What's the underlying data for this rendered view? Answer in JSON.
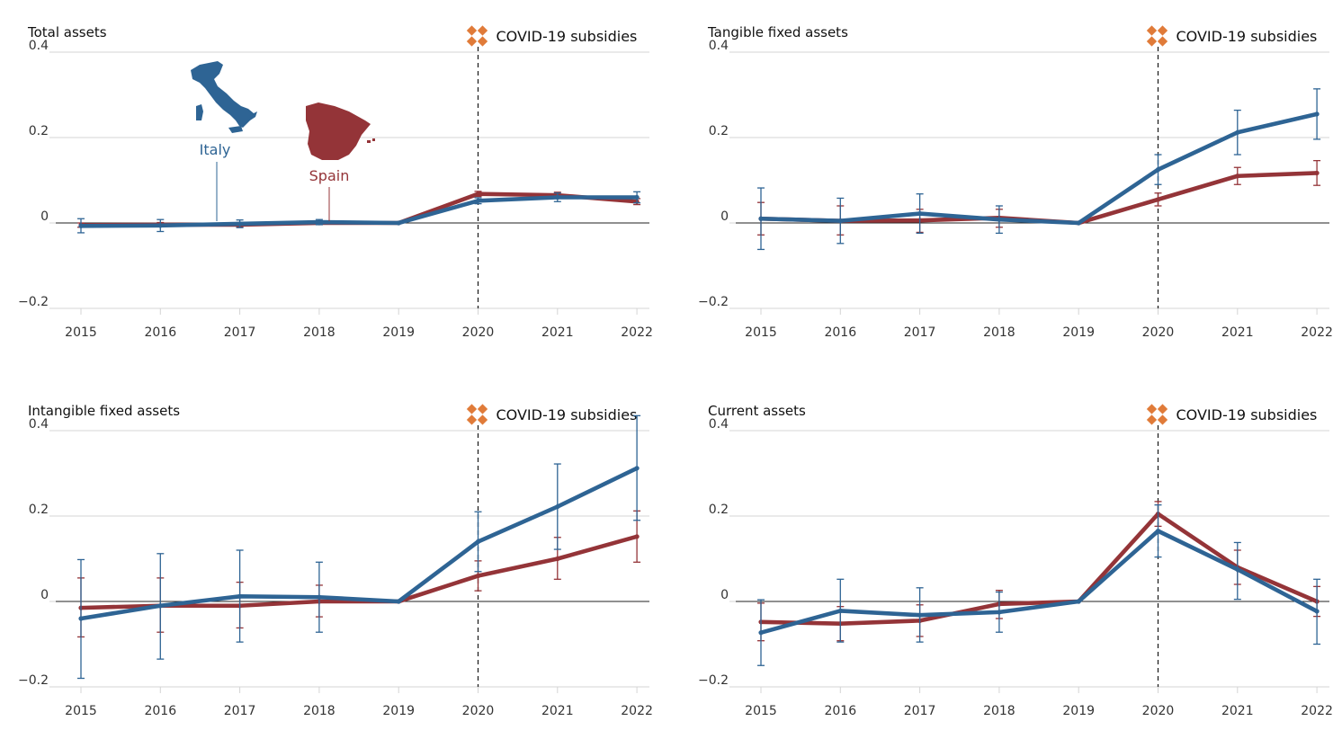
{
  "colors": {
    "italy": "#2e6494",
    "spain": "#943438",
    "covid_icon": "#e07b39"
  },
  "map_icons": {
    "italy": "italy-map-icon",
    "spain": "spain-map-icon"
  },
  "labels": {
    "italy": "Italy",
    "spain": "Spain"
  },
  "chart_data": [
    {
      "type": "line",
      "title": "Total assets",
      "annotation": "COVID-19 subsidies",
      "annotation_x": "2020",
      "x": [
        "2015",
        "2016",
        "2017",
        "2018",
        "2019",
        "2020",
        "2021",
        "2022"
      ],
      "ylim": [
        -0.2,
        0.4
      ],
      "yticks": [
        {
          "v": 0.4,
          "label": "0.4"
        },
        {
          "v": 0.2,
          "label": "0.2"
        },
        {
          "v": 0,
          "label": "0"
        },
        {
          "v": -0.2,
          "label": "−0.2"
        }
      ],
      "series": [
        {
          "name": "Spain",
          "color": "#943438",
          "values": [
            -0.005,
            -0.004,
            -0.004,
            0.0,
            0.0,
            0.068,
            0.065,
            0.05
          ],
          "ci": [
            [
              -0.01,
              0.0
            ],
            [
              -0.009,
              0.001
            ],
            [
              -0.009,
              0.001
            ],
            [
              -0.004,
              0.004
            ],
            null,
            [
              0.062,
              0.074
            ],
            [
              0.058,
              0.072
            ],
            [
              0.043,
              0.057
            ]
          ]
        },
        {
          "name": "Italy",
          "color": "#2e6494",
          "values": [
            -0.007,
            -0.006,
            -0.002,
            0.002,
            0.0,
            0.052,
            0.06,
            0.06
          ],
          "ci": [
            [
              -0.023,
              0.01
            ],
            [
              -0.02,
              0.008
            ],
            [
              -0.011,
              0.007
            ],
            [
              -0.004,
              0.008
            ],
            null,
            [
              0.045,
              0.059
            ],
            [
              0.05,
              0.07
            ],
            [
              0.047,
              0.073
            ]
          ]
        }
      ]
    },
    {
      "type": "line",
      "title": "Tangible fixed assets",
      "annotation": "COVID-19 subsidies",
      "annotation_x": "2020",
      "x": [
        "2015",
        "2016",
        "2017",
        "2018",
        "2019",
        "2020",
        "2021",
        "2022"
      ],
      "ylim": [
        -0.2,
        0.4
      ],
      "yticks": [
        {
          "v": 0.4,
          "label": "0.4"
        },
        {
          "v": 0.2,
          "label": "0.2"
        },
        {
          "v": 0,
          "label": "0"
        },
        {
          "v": -0.2,
          "label": "−0.2"
        }
      ],
      "series": [
        {
          "name": "Spain",
          "color": "#943438",
          "values": [
            0.01,
            0.005,
            0.006,
            0.012,
            0.0,
            0.055,
            0.11,
            0.117
          ],
          "ci": [
            [
              -0.028,
              0.048
            ],
            [
              -0.028,
              0.04
            ],
            [
              -0.022,
              0.032
            ],
            [
              -0.01,
              0.032
            ],
            null,
            [
              0.04,
              0.07
            ],
            [
              0.09,
              0.13
            ],
            [
              0.088,
              0.146
            ]
          ]
        },
        {
          "name": "Italy",
          "color": "#2e6494",
          "values": [
            0.01,
            0.005,
            0.022,
            0.008,
            0.0,
            0.125,
            0.212,
            0.255
          ],
          "ci": [
            [
              -0.062,
              0.082
            ],
            [
              -0.048,
              0.058
            ],
            [
              -0.024,
              0.068
            ],
            [
              -0.024,
              0.04
            ],
            null,
            [
              0.09,
              0.16
            ],
            [
              0.16,
              0.264
            ],
            [
              0.196,
              0.314
            ]
          ]
        }
      ]
    },
    {
      "type": "line",
      "title": "Intangible fixed assets",
      "annotation": "COVID-19 subsidies",
      "annotation_x": "2020",
      "x": [
        "2015",
        "2016",
        "2017",
        "2018",
        "2019",
        "2020",
        "2021",
        "2022"
      ],
      "ylim": [
        -0.2,
        0.4
      ],
      "yticks": [
        {
          "v": 0.4,
          "label": "0.4"
        },
        {
          "v": 0.2,
          "label": "0.2"
        },
        {
          "v": 0,
          "label": "0"
        },
        {
          "v": -0.2,
          "label": "−0.2"
        }
      ],
      "series": [
        {
          "name": "Spain",
          "color": "#943438",
          "values": [
            -0.015,
            -0.01,
            -0.01,
            0.0,
            0.0,
            0.06,
            0.1,
            0.152
          ],
          "ci": [
            [
              -0.083,
              0.055
            ],
            [
              -0.072,
              0.055
            ],
            [
              -0.062,
              0.045
            ],
            [
              -0.036,
              0.038
            ],
            null,
            [
              0.025,
              0.095
            ],
            [
              0.052,
              0.15
            ],
            [
              0.092,
              0.212
            ]
          ]
        },
        {
          "name": "Italy",
          "color": "#2e6494",
          "values": [
            -0.04,
            -0.01,
            0.012,
            0.01,
            0.0,
            0.14,
            0.222,
            0.312
          ],
          "ci": [
            [
              -0.18,
              0.098
            ],
            [
              -0.135,
              0.112
            ],
            [
              -0.095,
              0.12
            ],
            [
              -0.072,
              0.092
            ],
            null,
            [
              0.07,
              0.21
            ],
            [
              0.122,
              0.322
            ],
            [
              0.19,
              0.435
            ]
          ]
        }
      ]
    },
    {
      "type": "line",
      "title": "Current assets",
      "annotation": "COVID-19 subsidies",
      "annotation_x": "2020",
      "x": [
        "2015",
        "2016",
        "2017",
        "2018",
        "2019",
        "2020",
        "2021",
        "2022"
      ],
      "ylim": [
        -0.2,
        0.4
      ],
      "yticks": [
        {
          "v": 0.4,
          "label": "0.4"
        },
        {
          "v": 0.2,
          "label": "0.2"
        },
        {
          "v": 0,
          "label": "0"
        },
        {
          "v": -0.2,
          "label": "−0.2"
        }
      ],
      "series": [
        {
          "name": "Spain",
          "color": "#943438",
          "values": [
            -0.048,
            -0.052,
            -0.045,
            -0.006,
            0.0,
            0.205,
            0.08,
            0.0
          ],
          "ci": [
            [
              -0.092,
              -0.004
            ],
            [
              -0.092,
              -0.012
            ],
            [
              -0.082,
              -0.008
            ],
            [
              -0.04,
              0.026
            ],
            null,
            [
              0.176,
              0.234
            ],
            [
              0.04,
              0.12
            ],
            [
              -0.035,
              0.035
            ]
          ]
        },
        {
          "name": "Italy",
          "color": "#2e6494",
          "values": [
            -0.073,
            -0.022,
            -0.032,
            -0.025,
            0.0,
            0.165,
            0.075,
            -0.023
          ],
          "ci": [
            [
              -0.15,
              0.004
            ],
            [
              -0.095,
              0.052
            ],
            [
              -0.095,
              0.032
            ],
            [
              -0.072,
              0.022
            ],
            null,
            [
              0.104,
              0.226
            ],
            [
              0.005,
              0.138
            ],
            [
              -0.1,
              0.052
            ]
          ]
        }
      ]
    }
  ]
}
